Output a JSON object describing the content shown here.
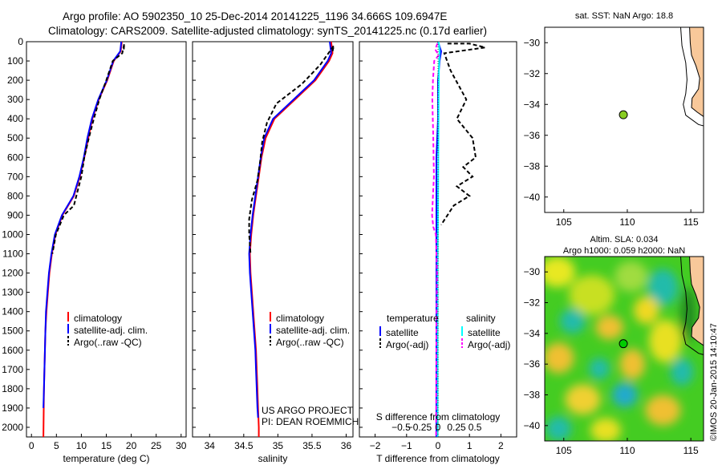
{
  "header": {
    "line1": "Argo profile: AO 5902350_10 25-Dec-2014 20141225_1196 34.666S 109.6947E",
    "line2": "Climatology: CARS2009. Satellite-adjusted climatology: synTS_20141225.nc (0.17d earlier)"
  },
  "credit": "©IMOS 20-Jan-2015 14:10:47",
  "chart_data": [
    {
      "id": "temperature",
      "type": "line",
      "xlabel": "temperature (deg C)",
      "ylabel": "",
      "xlim": [
        -1,
        31
      ],
      "ylim": [
        2050,
        0
      ],
      "xticks": [
        0,
        5,
        10,
        15,
        20,
        25,
        30
      ],
      "xtick_labels": [
        "0",
        "5",
        "10",
        "15",
        "20",
        "25",
        "30"
      ],
      "yticks": [
        0,
        100,
        200,
        300,
        400,
        500,
        600,
        700,
        800,
        900,
        1000,
        1100,
        1200,
        1300,
        1400,
        1500,
        1600,
        1700,
        1800,
        1900,
        2000
      ],
      "ytick_labels": [
        "0",
        "100",
        "200",
        "300",
        "400",
        "500",
        "600",
        "700",
        "800",
        "900",
        "1000",
        "1100",
        "1200",
        "1300",
        "1400",
        "1500",
        "1600",
        "1700",
        "1800",
        "1900",
        "2000"
      ],
      "legend": [
        "climatology",
        "satellite-adj. clim.",
        "Argo(..raw -QC)"
      ],
      "series": [
        {
          "name": "climatology",
          "color": "#ff0000",
          "dash": "",
          "x": [
            18.1,
            17.9,
            16.5,
            15.2,
            13.5,
            12.2,
            11.4,
            10.6,
            9.7,
            8.5,
            6.2,
            4.8,
            4.1,
            3.6,
            3.3,
            3.0,
            2.8,
            2.7,
            2.6,
            2.5,
            2.4
          ],
          "y": [
            0,
            50,
            100,
            200,
            300,
            400,
            500,
            600,
            700,
            800,
            900,
            1000,
            1100,
            1200,
            1300,
            1400,
            1500,
            1600,
            1700,
            1800,
            2050
          ]
        },
        {
          "name": "satellite-adj. clim.",
          "color": "#0000ff",
          "dash": "",
          "x": [
            18.0,
            17.8,
            16.4,
            15.1,
            13.4,
            12.1,
            11.2,
            10.5,
            9.6,
            8.4,
            6.1,
            4.7,
            4.0,
            3.5,
            3.2,
            2.9,
            2.8,
            2.7,
            2.6,
            2.5,
            2.4
          ],
          "y": [
            0,
            50,
            100,
            200,
            300,
            400,
            500,
            600,
            700,
            800,
            900,
            1000,
            1100,
            1200,
            1300,
            1400,
            1500,
            1600,
            1700,
            1800,
            1900
          ]
        },
        {
          "name": "Argo(..raw -QC)",
          "color": "#000000",
          "dash": "5,3",
          "x": [
            18.5,
            18.6,
            18.2,
            16.3,
            15.0,
            13.6,
            12.5,
            11.5,
            10.6,
            10.0,
            9.2,
            8.5,
            6.5,
            4.9,
            4.2
          ],
          "y": [
            40,
            10,
            60,
            100,
            200,
            300,
            400,
            500,
            600,
            700,
            780,
            850,
            900,
            1000,
            1100
          ]
        }
      ]
    },
    {
      "id": "salinity",
      "type": "line",
      "xlabel": "salinity",
      "xlim": [
        33.75,
        36.1
      ],
      "ylim": [
        2050,
        0
      ],
      "xticks": [
        34,
        34.5,
        35,
        35.5,
        36
      ],
      "xtick_labels": [
        "34",
        "34.5",
        "35",
        "35.5",
        "36"
      ],
      "legend": [
        "climatology",
        "satellite-adj. clim.",
        "Argo(..raw -QC)"
      ],
      "annotation_lines": [
        "US ARGO PROJECT",
        "PI: DEAN ROEMMICH"
      ],
      "series": [
        {
          "name": "climatology",
          "color": "#ff0000",
          "dash": "",
          "x": [
            35.78,
            35.8,
            35.75,
            35.55,
            35.25,
            34.95,
            34.82,
            34.76,
            34.72,
            34.68,
            34.64,
            34.61,
            34.59,
            34.6,
            34.62,
            34.64,
            34.66,
            34.68,
            34.69,
            34.7,
            34.71,
            34.72,
            34.72
          ],
          "y": [
            0,
            60,
            100,
            200,
            300,
            400,
            500,
            600,
            700,
            800,
            900,
            1000,
            1100,
            1200,
            1300,
            1400,
            1500,
            1600,
            1700,
            1800,
            1900,
            2000,
            2050
          ]
        },
        {
          "name": "satellite-adj. clim.",
          "color": "#0000ff",
          "dash": "",
          "x": [
            35.76,
            35.78,
            35.73,
            35.53,
            35.23,
            34.93,
            34.8,
            34.75,
            34.71,
            34.67,
            34.63,
            34.6,
            34.58,
            34.59,
            34.61,
            34.63,
            34.65,
            34.67,
            34.68,
            34.69,
            34.7,
            34.71
          ],
          "y": [
            0,
            60,
            100,
            200,
            300,
            400,
            500,
            600,
            700,
            800,
            900,
            1000,
            1100,
            1200,
            1300,
            1400,
            1500,
            1600,
            1700,
            1800,
            1900,
            1950
          ]
        },
        {
          "name": "Argo(..raw -QC)",
          "color": "#000000",
          "dash": "5,3",
          "x": [
            35.8,
            35.82,
            35.7,
            35.62,
            35.35,
            34.98,
            34.84,
            34.77,
            34.74,
            34.7,
            34.62,
            34.58,
            34.58,
            34.6
          ],
          "y": [
            50,
            20,
            80,
            120,
            220,
            320,
            420,
            520,
            620,
            720,
            820,
            920,
            1000,
            1100
          ]
        }
      ]
    },
    {
      "id": "difference",
      "type": "line",
      "xlabel_top": "S difference from climatology",
      "xlabel": "T difference from climatology",
      "xlim": [
        -2.5,
        2.5
      ],
      "ylim": [
        2050,
        0
      ],
      "xticks": [
        -2,
        -1,
        0,
        1,
        2
      ],
      "xtick_labels": [
        "−2",
        "−1",
        "0",
        "1",
        "2"
      ],
      "s_ticks": [
        -0.5,
        -0.25,
        0,
        0.25,
        0.5
      ],
      "s_tick_labels": [
        "−0.5",
        "−0.25",
        "0",
        "0.25",
        "0.5"
      ],
      "legend_left_title": "temperature",
      "legend_right_title": "salinity",
      "legend_left": [
        "satellite",
        "Argo(-adj)"
      ],
      "legend_right": [
        "satellite",
        "Argo(-adj)"
      ],
      "series": [
        {
          "name": "temperature satellite",
          "color": "#0000ff",
          "dash": "",
          "x": [
            0.0,
            0.1,
            0.05,
            0.0,
            0.0,
            -0.05,
            -0.05,
            -0.05,
            -0.05,
            -0.05,
            -0.05,
            -0.05
          ],
          "y": [
            0,
            50,
            100,
            200,
            400,
            600,
            800,
            1000,
            1200,
            1400,
            1600,
            2050
          ]
        },
        {
          "name": "temperature Argo(-adj)",
          "color": "#000000",
          "dash": "5,3",
          "x": [
            0.3,
            1.0,
            1.5,
            0.2,
            0.4,
            0.9,
            0.6,
            1.1,
            1.2,
            0.8,
            1.1,
            0.6,
            1.0,
            0.5,
            0.3,
            0.1
          ],
          "y": [
            10,
            10,
            30,
            60,
            150,
            300,
            400,
            500,
            600,
            650,
            700,
            750,
            800,
            850,
            900,
            950
          ]
        },
        {
          "name": "salinity satellite",
          "color": "#00ffff",
          "dash": "",
          "x": [
            0.02,
            0.05,
            0.03,
            0.02,
            0.01,
            0.0,
            -0.01,
            -0.01,
            -0.01
          ],
          "y": [
            0,
            50,
            120,
            300,
            600,
            900,
            1200,
            1500,
            2050
          ]
        },
        {
          "name": "salinity Argo(-adj)",
          "color": "#ff00ff",
          "dash": "5,3",
          "x": [
            -0.02,
            -0.09,
            0.02,
            -0.12,
            -0.16,
            -0.18,
            -0.15,
            -0.13,
            -0.16,
            -0.19,
            -0.15,
            -0.07,
            -0.03,
            -0.05,
            -0.06
          ],
          "y": [
            10,
            40,
            70,
            100,
            200,
            300,
            500,
            700,
            800,
            900,
            960,
            1000,
            1200,
            1500,
            2050
          ]
        }
      ]
    },
    {
      "id": "map-sst",
      "type": "map",
      "title": "sat. SST: NaN Argo: 18.8",
      "xlim": [
        103.5,
        116
      ],
      "ylim": [
        -41,
        -29
      ],
      "xticks": [
        105,
        110,
        115
      ],
      "xtick_labels": [
        "105",
        "110",
        "115"
      ],
      "yticks": [
        -30,
        -32,
        -34,
        -36,
        -38,
        -40
      ],
      "ytick_labels": [
        "−30",
        "−32",
        "−34",
        "−36",
        "−38",
        "−40"
      ],
      "marker": {
        "lon": 109.69,
        "lat": -34.67,
        "color": "#88cc22"
      },
      "land_color": "#f8c89a"
    },
    {
      "id": "map-sla",
      "type": "heatmap",
      "title_line1": "Altim. SLA: 0.034",
      "title_line2": "Argo h1000: 0.059 h2000: NaN",
      "xlim": [
        103.5,
        116
      ],
      "ylim": [
        -41,
        -29
      ],
      "xticks": [
        105,
        110,
        115
      ],
      "xtick_labels": [
        "105",
        "110",
        "115"
      ],
      "yticks": [
        -30,
        -32,
        -34,
        -36,
        -38,
        -40
      ],
      "ytick_labels": [
        "−30",
        "−32",
        "−34",
        "−36",
        "−38",
        "−40"
      ],
      "marker": {
        "lon": 109.69,
        "lat": -34.67,
        "color": "#00cc00"
      },
      "base_color": "#44cc22",
      "blobs": [
        {
          "lon": 104.5,
          "lat": -30.0,
          "rlon": 1.4,
          "rlat": 1.0,
          "color": "#e8e820"
        },
        {
          "lon": 107.2,
          "lat": -31.5,
          "rlon": 1.8,
          "rlat": 1.3,
          "color": "#c8e020"
        },
        {
          "lon": 110.3,
          "lat": -30.3,
          "rlon": 1.3,
          "rlat": 1.0,
          "color": "#a0dc40"
        },
        {
          "lon": 112.8,
          "lat": -31.0,
          "rlon": 1.2,
          "rlat": 1.2,
          "color": "#22bbaa"
        },
        {
          "lon": 111.5,
          "lat": -32.5,
          "rlon": 1.0,
          "rlat": 0.9,
          "color": "#f0d820"
        },
        {
          "lon": 105.7,
          "lat": -33.2,
          "rlon": 1.0,
          "rlat": 0.8,
          "color": "#22bbaa"
        },
        {
          "lon": 108.6,
          "lat": -33.6,
          "rlon": 1.1,
          "rlat": 0.8,
          "color": "#f0c030"
        },
        {
          "lon": 113.0,
          "lat": -34.5,
          "rlon": 1.3,
          "rlat": 1.4,
          "color": "#e8e020"
        },
        {
          "lon": 104.6,
          "lat": -35.6,
          "rlon": 1.2,
          "rlat": 1.0,
          "color": "#f0c030"
        },
        {
          "lon": 107.8,
          "lat": -36.3,
          "rlon": 0.8,
          "rlat": 0.7,
          "color": "#22bbaa"
        },
        {
          "lon": 110.4,
          "lat": -36.0,
          "rlon": 1.0,
          "rlat": 1.0,
          "color": "#f0c030"
        },
        {
          "lon": 114.3,
          "lat": -36.5,
          "rlon": 0.9,
          "rlat": 0.9,
          "color": "#22bbaa"
        },
        {
          "lon": 106.5,
          "lat": -38.3,
          "rlon": 1.4,
          "rlat": 1.0,
          "color": "#f0d030"
        },
        {
          "lon": 109.8,
          "lat": -38.0,
          "rlon": 1.0,
          "rlat": 0.8,
          "color": "#22aacc"
        },
        {
          "lon": 112.8,
          "lat": -39.0,
          "rlon": 1.4,
          "rlat": 1.0,
          "color": "#f0c030"
        },
        {
          "lon": 104.6,
          "lat": -40.2,
          "rlon": 1.0,
          "rlat": 0.8,
          "color": "#22bbaa"
        },
        {
          "lon": 108.3,
          "lat": -40.3,
          "rlon": 1.2,
          "rlat": 0.8,
          "color": "#e8e020"
        },
        {
          "lon": 114.8,
          "lat": -32.8,
          "rlon": 0.6,
          "rlat": 1.8,
          "color": "#228822"
        }
      ]
    }
  ]
}
